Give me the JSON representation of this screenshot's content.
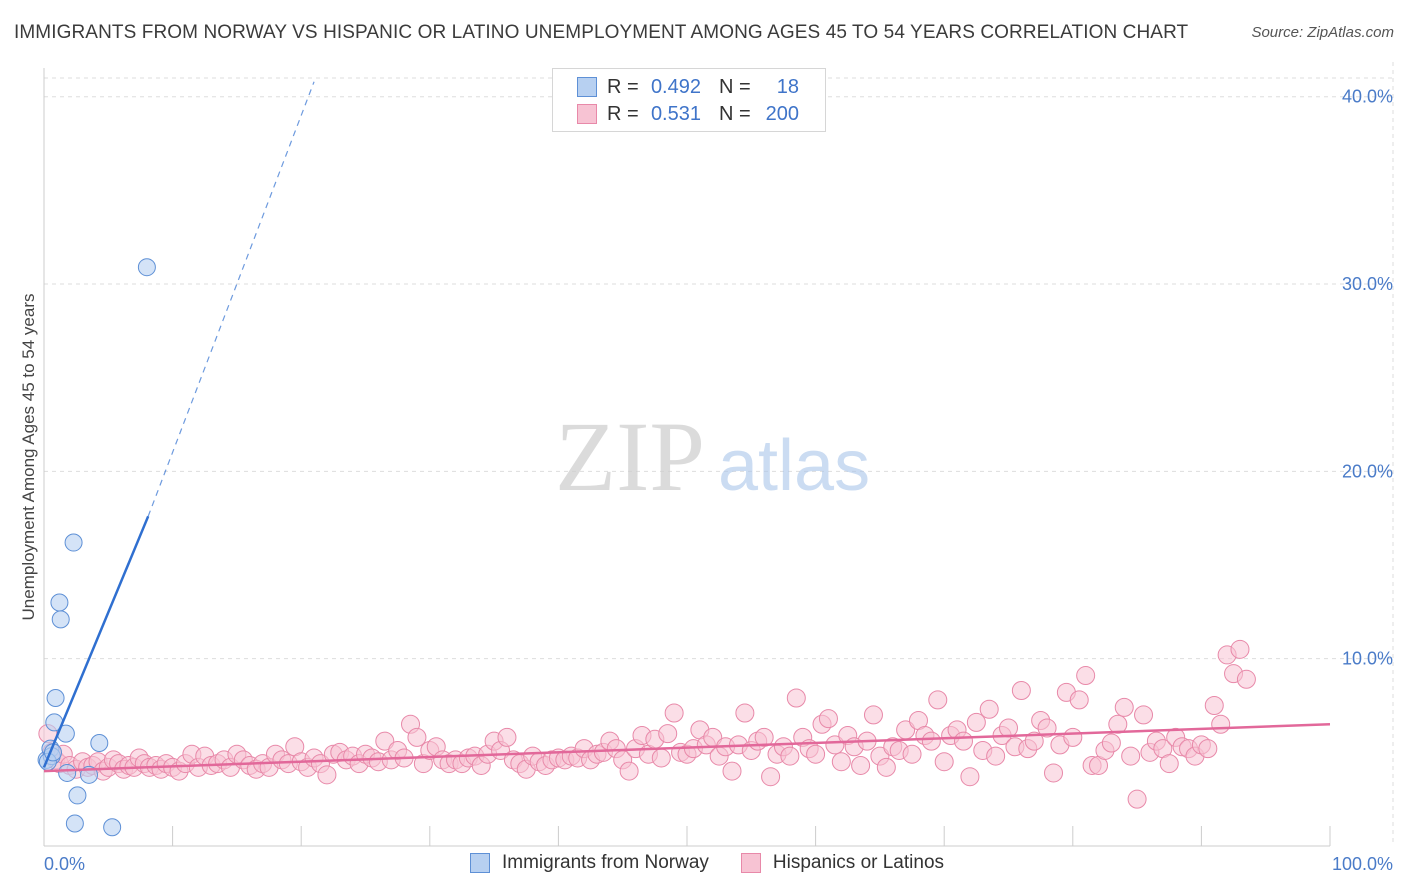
{
  "header": {
    "title": "IMMIGRANTS FROM NORWAY VS HISPANIC OR LATINO UNEMPLOYMENT AMONG AGES 45 TO 54 YEARS CORRELATION CHART",
    "source": "Source: ZipAtlas.com"
  },
  "legend": {
    "rows": [
      {
        "r_key": "R =",
        "r_value": "0.492",
        "n_key": "N =",
        "n_value": "18"
      },
      {
        "r_key": "R =",
        "r_value": "0.531",
        "n_key": "N =",
        "n_value": "200"
      }
    ]
  },
  "bottom_legend": {
    "items": [
      {
        "label": "Immigrants from Norway"
      },
      {
        "label": "Hispanics or Latinos"
      }
    ]
  },
  "watermark": {
    "zip": "ZIP",
    "atlas": "atlas"
  },
  "colors": {
    "blue_fill": "#b7d0f1",
    "blue_stroke": "#5e90d6",
    "blue_line": "#2f6fd0",
    "pink_fill": "#f7c3d3",
    "pink_stroke": "#e889a9",
    "pink_line": "#e2689a",
    "grid": "#dddddd",
    "tick_text": "#4a7bc8"
  },
  "chart_data": {
    "type": "scatter",
    "title": "IMMIGRANTS FROM NORWAY VS HISPANIC OR LATINO UNEMPLOYMENT AMONG AGES 45 TO 54 YEARS CORRELATION CHART",
    "xlabel": "",
    "ylabel": "Unemployment Among Ages 45 to 54 years",
    "xlim": [
      0,
      100
    ],
    "ylim": [
      0,
      41
    ],
    "x_tick_labels": [
      {
        "value": 0,
        "label": "0.0%"
      },
      {
        "value": 100,
        "label": "100.0%"
      }
    ],
    "y_ticks": [
      {
        "value": 10,
        "label": "10.0%"
      },
      {
        "value": 20,
        "label": "20.0%"
      },
      {
        "value": 30,
        "label": "30.0%"
      },
      {
        "value": 40,
        "label": "40.0%"
      }
    ],
    "series": [
      {
        "name": "Immigrants from Norway",
        "r": 0.492,
        "n": 18,
        "points": [
          [
            0.2,
            4.6
          ],
          [
            0.5,
            5.2
          ],
          [
            0.6,
            4.8
          ],
          [
            0.8,
            6.6
          ],
          [
            0.9,
            7.9
          ],
          [
            1.2,
            13.0
          ],
          [
            1.3,
            12.1
          ],
          [
            1.7,
            6.0
          ],
          [
            1.8,
            3.9
          ],
          [
            2.3,
            16.2
          ],
          [
            2.4,
            1.2
          ],
          [
            2.6,
            2.7
          ],
          [
            3.5,
            3.8
          ],
          [
            4.3,
            5.5
          ],
          [
            5.3,
            1.0
          ],
          [
            8.0,
            30.9
          ],
          [
            0.3,
            4.5
          ],
          [
            0.7,
            5.0
          ]
        ],
        "trend_solid": [
          [
            0.0,
            4.2
          ],
          [
            8.1,
            17.6
          ]
        ],
        "trend_dashed": [
          [
            8.1,
            17.6
          ],
          [
            21.0,
            40.8
          ]
        ]
      },
      {
        "name": "Hispanics or Latinos",
        "r": 0.531,
        "n": 200,
        "points": [
          [
            0.3,
            6.0
          ],
          [
            0.6,
            5.0
          ],
          [
            0.9,
            4.6
          ],
          [
            1.2,
            4.4
          ],
          [
            1.5,
            4.9
          ],
          [
            2.0,
            4.3
          ],
          [
            2.5,
            4.1
          ],
          [
            3.0,
            4.5
          ],
          [
            3.4,
            4.2
          ],
          [
            3.8,
            4.3
          ],
          [
            4.2,
            4.5
          ],
          [
            4.6,
            4.0
          ],
          [
            5.0,
            4.2
          ],
          [
            5.4,
            4.6
          ],
          [
            5.8,
            4.4
          ],
          [
            6.2,
            4.1
          ],
          [
            6.6,
            4.3
          ],
          [
            7.0,
            4.2
          ],
          [
            7.4,
            4.7
          ],
          [
            7.8,
            4.4
          ],
          [
            8.2,
            4.2
          ],
          [
            8.7,
            4.3
          ],
          [
            9.1,
            4.1
          ],
          [
            9.5,
            4.4
          ],
          [
            10.0,
            4.2
          ],
          [
            10.5,
            4.0
          ],
          [
            11.0,
            4.4
          ],
          [
            11.5,
            4.9
          ],
          [
            12.0,
            4.2
          ],
          [
            12.5,
            4.8
          ],
          [
            13.0,
            4.3
          ],
          [
            13.5,
            4.4
          ],
          [
            14.0,
            4.6
          ],
          [
            14.5,
            4.2
          ],
          [
            15.0,
            4.9
          ],
          [
            15.5,
            4.6
          ],
          [
            16.0,
            4.3
          ],
          [
            16.5,
            4.1
          ],
          [
            17.0,
            4.4
          ],
          [
            17.5,
            4.2
          ],
          [
            18.0,
            4.9
          ],
          [
            18.5,
            4.6
          ],
          [
            19.0,
            4.4
          ],
          [
            19.5,
            5.3
          ],
          [
            20.0,
            4.5
          ],
          [
            20.5,
            4.2
          ],
          [
            21.0,
            4.7
          ],
          [
            21.5,
            4.4
          ],
          [
            22.0,
            3.8
          ],
          [
            22.5,
            4.9
          ],
          [
            23.0,
            5.0
          ],
          [
            23.5,
            4.6
          ],
          [
            24.0,
            4.8
          ],
          [
            24.5,
            4.4
          ],
          [
            25.0,
            4.9
          ],
          [
            25.5,
            4.7
          ],
          [
            26.0,
            4.5
          ],
          [
            26.5,
            5.6
          ],
          [
            27.0,
            4.6
          ],
          [
            27.5,
            5.1
          ],
          [
            28.0,
            4.7
          ],
          [
            28.5,
            6.5
          ],
          [
            29.0,
            5.8
          ],
          [
            29.5,
            4.4
          ],
          [
            30.0,
            5.1
          ],
          [
            30.5,
            5.3
          ],
          [
            31.0,
            4.6
          ],
          [
            31.5,
            4.4
          ],
          [
            32.0,
            4.6
          ],
          [
            32.5,
            4.4
          ],
          [
            33.0,
            4.7
          ],
          [
            33.5,
            4.8
          ],
          [
            34.0,
            4.3
          ],
          [
            34.5,
            4.9
          ],
          [
            35.0,
            5.6
          ],
          [
            35.5,
            5.1
          ],
          [
            36.0,
            5.8
          ],
          [
            36.5,
            4.6
          ],
          [
            37.0,
            4.4
          ],
          [
            37.5,
            4.1
          ],
          [
            38.0,
            4.8
          ],
          [
            38.5,
            4.5
          ],
          [
            39.0,
            4.3
          ],
          [
            39.5,
            4.6
          ],
          [
            40.0,
            4.7
          ],
          [
            40.5,
            4.6
          ],
          [
            41.0,
            4.8
          ],
          [
            41.5,
            4.7
          ],
          [
            42.0,
            5.2
          ],
          [
            42.5,
            4.6
          ],
          [
            43.0,
            4.9
          ],
          [
            43.5,
            5.0
          ],
          [
            44.0,
            5.6
          ],
          [
            44.5,
            5.2
          ],
          [
            45.0,
            4.6
          ],
          [
            45.5,
            4.0
          ],
          [
            46.0,
            5.2
          ],
          [
            46.5,
            5.9
          ],
          [
            47.0,
            4.9
          ],
          [
            47.5,
            5.7
          ],
          [
            48.0,
            4.7
          ],
          [
            48.5,
            6.0
          ],
          [
            49.0,
            7.1
          ],
          [
            49.5,
            5.0
          ],
          [
            50.0,
            4.9
          ],
          [
            50.5,
            5.2
          ],
          [
            51.0,
            6.2
          ],
          [
            51.5,
            5.4
          ],
          [
            52.0,
            5.8
          ],
          [
            52.5,
            4.8
          ],
          [
            53.0,
            5.3
          ],
          [
            53.5,
            4.0
          ],
          [
            54.0,
            5.4
          ],
          [
            54.5,
            7.1
          ],
          [
            55.0,
            5.1
          ],
          [
            55.5,
            5.6
          ],
          [
            56.0,
            5.8
          ],
          [
            56.5,
            3.7
          ],
          [
            57.0,
            4.9
          ],
          [
            57.5,
            5.3
          ],
          [
            58.0,
            4.8
          ],
          [
            58.5,
            7.9
          ],
          [
            59.0,
            5.8
          ],
          [
            59.5,
            5.2
          ],
          [
            60.0,
            4.9
          ],
          [
            60.5,
            6.5
          ],
          [
            61.0,
            6.8
          ],
          [
            61.5,
            5.4
          ],
          [
            62.0,
            4.5
          ],
          [
            62.5,
            5.9
          ],
          [
            63.0,
            5.3
          ],
          [
            63.5,
            4.3
          ],
          [
            64.0,
            5.6
          ],
          [
            64.5,
            7.0
          ],
          [
            65.0,
            4.8
          ],
          [
            65.5,
            4.2
          ],
          [
            66.0,
            5.3
          ],
          [
            66.5,
            5.1
          ],
          [
            67.0,
            6.2
          ],
          [
            67.5,
            4.9
          ],
          [
            68.0,
            6.7
          ],
          [
            68.5,
            5.9
          ],
          [
            69.0,
            5.6
          ],
          [
            69.5,
            7.8
          ],
          [
            70.0,
            4.5
          ],
          [
            70.5,
            5.9
          ],
          [
            71.0,
            6.2
          ],
          [
            71.5,
            5.6
          ],
          [
            72.0,
            3.7
          ],
          [
            72.5,
            6.6
          ],
          [
            73.0,
            5.1
          ],
          [
            73.5,
            7.3
          ],
          [
            74.0,
            4.8
          ],
          [
            74.5,
            5.9
          ],
          [
            75.0,
            6.3
          ],
          [
            75.5,
            5.3
          ],
          [
            76.0,
            8.3
          ],
          [
            76.5,
            5.2
          ],
          [
            77.0,
            5.6
          ],
          [
            77.5,
            6.7
          ],
          [
            78.0,
            6.3
          ],
          [
            78.5,
            3.9
          ],
          [
            79.0,
            5.4
          ],
          [
            79.5,
            8.2
          ],
          [
            80.0,
            5.8
          ],
          [
            80.5,
            7.8
          ],
          [
            81.0,
            9.1
          ],
          [
            81.5,
            4.3
          ],
          [
            82.0,
            4.3
          ],
          [
            82.5,
            5.1
          ],
          [
            83.0,
            5.5
          ],
          [
            83.5,
            6.5
          ],
          [
            84.0,
            7.4
          ],
          [
            84.5,
            4.8
          ],
          [
            85.0,
            2.5
          ],
          [
            85.5,
            7.0
          ],
          [
            86.0,
            5.0
          ],
          [
            86.5,
            5.6
          ],
          [
            87.0,
            5.2
          ],
          [
            87.5,
            4.4
          ],
          [
            88.0,
            5.8
          ],
          [
            88.5,
            5.3
          ],
          [
            89.0,
            5.2
          ],
          [
            89.5,
            4.8
          ],
          [
            90.0,
            5.4
          ],
          [
            90.5,
            5.2
          ],
          [
            91.0,
            7.5
          ],
          [
            91.5,
            6.5
          ],
          [
            92.0,
            10.2
          ],
          [
            92.5,
            9.2
          ],
          [
            93.0,
            10.5
          ],
          [
            93.5,
            8.9
          ]
        ],
        "trend": [
          [
            0.0,
            4.0
          ],
          [
            100.0,
            6.5
          ]
        ]
      }
    ]
  }
}
